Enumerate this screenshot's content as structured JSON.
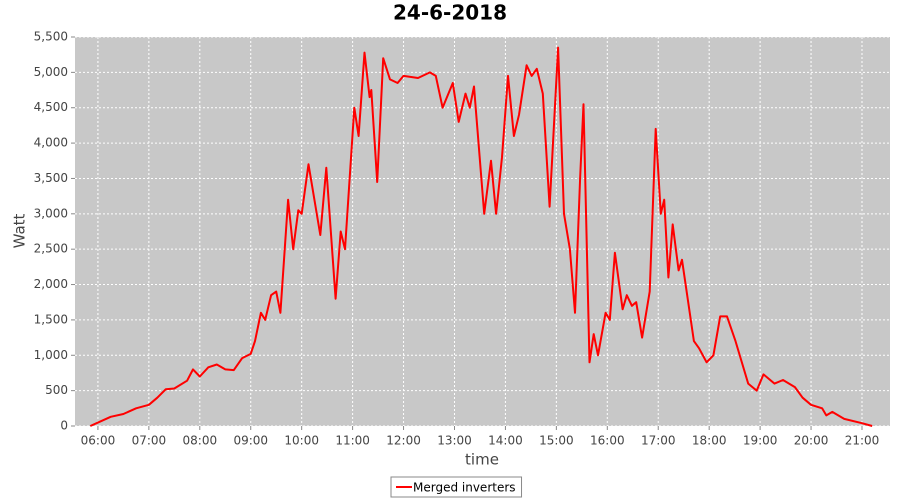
{
  "chart_data": {
    "type": "line",
    "title": "24-6-2018",
    "x_label": "time",
    "y_label": "Watt",
    "x": [
      "05:51",
      "06:02",
      "06:15",
      "06:30",
      "06:45",
      "07:00",
      "07:10",
      "07:20",
      "07:30",
      "07:45",
      "07:52",
      "08:00",
      "08:10",
      "08:20",
      "08:30",
      "08:40",
      "08:50",
      "09:00",
      "09:05",
      "09:12",
      "09:17",
      "09:24",
      "09:30",
      "09:35",
      "09:44",
      "09:50",
      "09:56",
      "10:00",
      "10:08",
      "10:22",
      "10:29",
      "10:40",
      "10:46",
      "10:51",
      "11:02",
      "11:07",
      "11:14",
      "11:20",
      "11:22",
      "11:29",
      "11:36",
      "11:44",
      "11:53",
      "12:00",
      "12:17",
      "12:31",
      "12:38",
      "12:46",
      "12:58",
      "13:05",
      "13:13",
      "13:18",
      "13:23",
      "13:35",
      "13:43",
      "13:49",
      "13:56",
      "14:03",
      "14:10",
      "14:16",
      "14:25",
      "14:31",
      "14:37",
      "14:44",
      "14:52",
      "15:02",
      "15:09",
      "15:16",
      "15:22",
      "15:28",
      "15:32",
      "15:39",
      "15:44",
      "15:49",
      "15:58",
      "16:03",
      "16:09",
      "16:18",
      "16:23",
      "16:29",
      "16:34",
      "16:41",
      "16:50",
      "16:57",
      "17:03",
      "17:07",
      "17:12",
      "17:17",
      "17:24",
      "17:28",
      "17:42",
      "17:48",
      "17:57",
      "18:05",
      "18:13",
      "18:21",
      "18:31",
      "18:46",
      "18:56",
      "19:04",
      "19:17",
      "19:27",
      "19:41",
      "19:50",
      "20:00",
      "20:13",
      "20:18",
      "20:25",
      "20:39",
      "21:00",
      "21:12"
    ],
    "series": [
      {
        "name": "Merged inverters",
        "color": "#ff0000",
        "values": [
          0,
          60,
          130,
          170,
          250,
          300,
          400,
          520,
          530,
          640,
          800,
          700,
          830,
          870,
          800,
          790,
          960,
          1020,
          1200,
          1600,
          1500,
          1850,
          1900,
          1600,
          3200,
          2500,
          3050,
          3000,
          3700,
          2700,
          3650,
          1800,
          2750,
          2500,
          4500,
          4100,
          5280,
          4650,
          4750,
          3450,
          5200,
          4900,
          4850,
          4950,
          4920,
          5000,
          4950,
          4500,
          4850,
          4300,
          4700,
          4500,
          4800,
          3000,
          3750,
          3000,
          3800,
          4950,
          4100,
          4400,
          5100,
          4950,
          5050,
          4700,
          3100,
          5350,
          3000,
          2500,
          1600,
          3500,
          4550,
          900,
          1300,
          1000,
          1600,
          1500,
          2450,
          1650,
          1850,
          1700,
          1750,
          1250,
          1900,
          4200,
          3000,
          3200,
          2100,
          2850,
          2200,
          2350,
          1200,
          1100,
          900,
          1000,
          1550,
          1550,
          1200,
          600,
          500,
          730,
          600,
          650,
          550,
          400,
          300,
          250,
          150,
          200,
          100,
          40,
          0
        ]
      }
    ],
    "xlim": [
      "05:33",
      "21:33"
    ],
    "xticks": [
      "06:00",
      "07:00",
      "08:00",
      "09:00",
      "10:00",
      "11:00",
      "12:00",
      "13:00",
      "14:00",
      "15:00",
      "16:00",
      "17:00",
      "18:00",
      "19:00",
      "20:00",
      "21:00"
    ],
    "ylim": [
      0,
      5500
    ],
    "yticks": [
      0,
      500,
      {
        "value": 1000,
        "label": "1,000"
      },
      {
        "value": 1500,
        "label": "1,500"
      },
      {
        "value": 2000,
        "label": "2,000"
      },
      {
        "value": 2500,
        "label": "2,500"
      },
      {
        "value": 3000,
        "label": "3,000"
      },
      {
        "value": 3500,
        "label": "3,500"
      },
      {
        "value": 4000,
        "label": "4,000"
      },
      {
        "value": 4500,
        "label": "4,500"
      },
      {
        "value": 5000,
        "label": "5,000"
      },
      {
        "value": 5500,
        "label": "5,500"
      }
    ],
    "grid": true,
    "legend": "bottom"
  }
}
